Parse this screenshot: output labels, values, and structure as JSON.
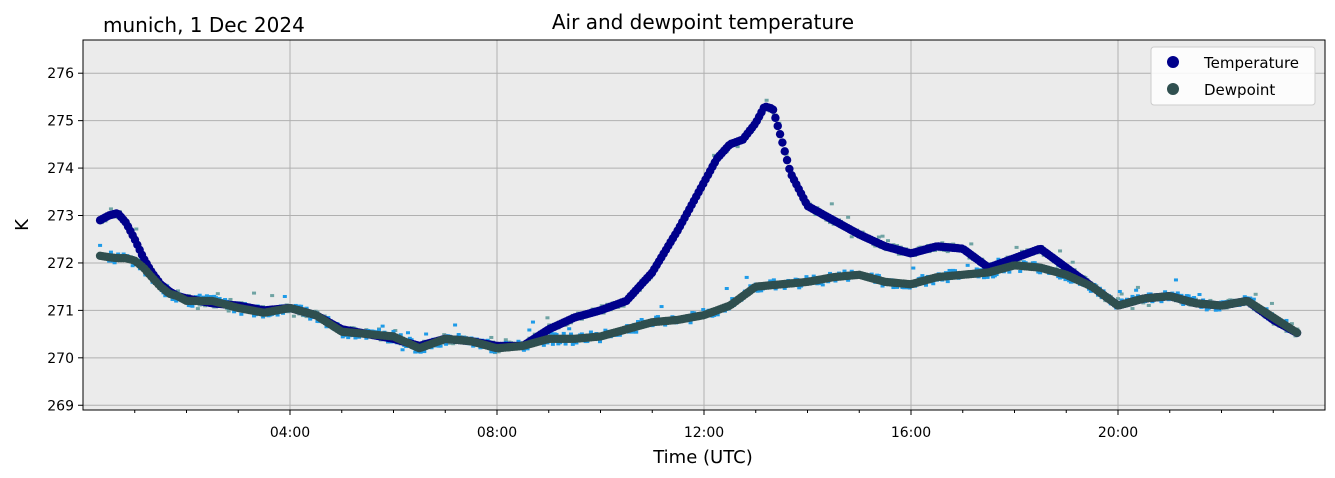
{
  "page": {
    "location_date": "munich, 1 Dec 2024"
  },
  "chart_data": {
    "type": "line",
    "title": "Air and dewpoint temperature",
    "xlabel": "Time (UTC)",
    "ylabel": "K",
    "x_unit": "hours UTC",
    "xlim": [
      0,
      24
    ],
    "ylim": [
      268.9,
      276.7
    ],
    "x_ticks": [
      4,
      8,
      12,
      16,
      20
    ],
    "x_tick_labels": [
      "04:00",
      "08:00",
      "12:00",
      "16:00",
      "20:00"
    ],
    "y_ticks": [
      269,
      270,
      271,
      272,
      273,
      274,
      275,
      276
    ],
    "y_tick_labels": [
      "269",
      "270",
      "271",
      "272",
      "273",
      "274",
      "275",
      "276"
    ],
    "grid": true,
    "legend_position": "top-right",
    "background_color": "#ebebeb",
    "series": [
      {
        "name": "Temperature",
        "color": "#00008b",
        "raw_color": "#6fa3a3",
        "x": [
          0.33,
          0.5,
          0.67,
          0.83,
          1.0,
          1.17,
          1.33,
          1.5,
          1.67,
          1.83,
          2.0,
          2.5,
          3.0,
          3.5,
          4.0,
          4.5,
          5.0,
          5.5,
          6.0,
          6.5,
          7.0,
          7.5,
          8.0,
          8.5,
          9.0,
          9.5,
          10.0,
          10.5,
          11.0,
          11.5,
          12.0,
          12.25,
          12.5,
          12.75,
          13.0,
          13.17,
          13.33,
          13.5,
          13.67,
          14.0,
          14.5,
          15.0,
          15.5,
          16.0,
          16.5,
          17.0,
          17.5,
          18.0,
          18.5,
          19.0,
          19.5,
          20.0,
          20.5,
          21.0,
          21.5,
          22.0,
          22.5,
          23.0,
          23.5
        ],
        "y": [
          272.9,
          273.0,
          273.05,
          272.85,
          272.5,
          272.1,
          271.8,
          271.55,
          271.4,
          271.3,
          271.25,
          271.15,
          271.1,
          271.0,
          271.05,
          270.9,
          270.6,
          270.5,
          270.4,
          270.25,
          270.4,
          270.35,
          270.25,
          270.25,
          270.6,
          270.85,
          271.0,
          271.2,
          271.8,
          272.7,
          273.7,
          274.2,
          274.5,
          274.6,
          274.95,
          275.3,
          275.25,
          274.6,
          273.9,
          273.2,
          272.9,
          272.6,
          272.35,
          272.2,
          272.35,
          272.3,
          271.9,
          272.1,
          272.3,
          271.9,
          271.5,
          271.1,
          271.25,
          271.3,
          271.15,
          271.1,
          271.2,
          270.8,
          270.5
        ]
      },
      {
        "name": "Dewpoint",
        "color": "#2f4f4f",
        "raw_color": "#1e9be8",
        "x": [
          0.33,
          0.5,
          0.67,
          0.83,
          1.0,
          1.17,
          1.33,
          1.5,
          1.67,
          1.83,
          2.0,
          2.5,
          3.0,
          3.5,
          4.0,
          4.5,
          5.0,
          5.5,
          6.0,
          6.5,
          7.0,
          7.5,
          8.0,
          8.5,
          9.0,
          9.5,
          10.0,
          10.5,
          11.0,
          11.5,
          12.0,
          12.5,
          13.0,
          13.5,
          14.0,
          14.5,
          15.0,
          15.5,
          16.0,
          16.5,
          17.0,
          17.5,
          18.0,
          18.5,
          19.0,
          19.5,
          20.0,
          20.5,
          21.0,
          21.5,
          22.0,
          22.5,
          23.0,
          23.5
        ],
        "y": [
          272.15,
          272.12,
          272.1,
          272.1,
          272.05,
          271.9,
          271.7,
          271.5,
          271.35,
          271.3,
          271.2,
          271.2,
          271.05,
          270.95,
          271.05,
          270.9,
          270.55,
          270.5,
          270.45,
          270.2,
          270.4,
          270.35,
          270.2,
          270.25,
          270.4,
          270.4,
          270.45,
          270.6,
          270.75,
          270.8,
          270.9,
          271.1,
          271.5,
          271.55,
          271.6,
          271.7,
          271.75,
          271.6,
          271.55,
          271.7,
          271.75,
          271.8,
          271.95,
          271.9,
          271.75,
          271.5,
          271.1,
          271.25,
          271.3,
          271.15,
          271.1,
          271.2,
          270.85,
          270.5
        ]
      }
    ]
  }
}
